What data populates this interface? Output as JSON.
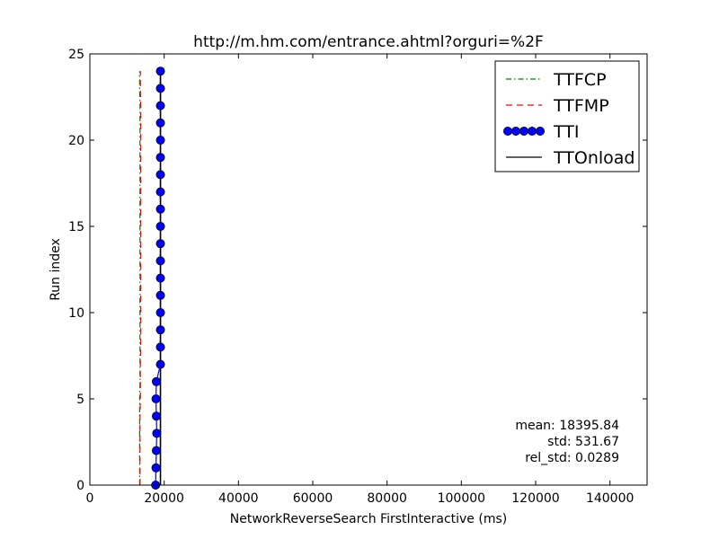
{
  "chart_data": {
    "type": "line",
    "title": "http://m.hm.com/entrance.ahtml?orguri=%2F",
    "xlabel": "NetworkReverseSearch FirstInteractive (ms)",
    "ylabel": "Run index",
    "xlim": [
      0,
      150000
    ],
    "ylim": [
      0,
      25
    ],
    "xticks": [
      0,
      20000,
      40000,
      60000,
      80000,
      100000,
      120000,
      140000
    ],
    "xtick_labels": [
      "0",
      "20000",
      "40000",
      "60000",
      "80000",
      "100000",
      "120000",
      "140000"
    ],
    "yticks": [
      0,
      5,
      10,
      15,
      20,
      25
    ],
    "ytick_labels": [
      "0",
      "5",
      "10",
      "15",
      "20",
      "25"
    ],
    "grid": false,
    "legend_position": "top-right",
    "y": [
      0,
      1,
      2,
      3,
      4,
      5,
      6,
      7,
      8,
      9,
      10,
      11,
      12,
      13,
      14,
      15,
      16,
      17,
      18,
      19,
      20,
      21,
      22,
      23,
      24
    ],
    "series": [
      {
        "name": "TTFCP",
        "color": "#008000",
        "style": "dashdot",
        "marker": "none",
        "x": [
          13400,
          13400,
          13400,
          13400,
          13400,
          13400,
          13500,
          13500,
          13500,
          13500,
          13500,
          13500,
          13500,
          13500,
          13500,
          13500,
          13500,
          13500,
          13500,
          13500,
          13500,
          13500,
          13500,
          13400,
          13400
        ]
      },
      {
        "name": "TTFMP",
        "color": "#ff0000",
        "style": "dashed",
        "marker": "none",
        "x": [
          13500,
          13500,
          13500,
          13500,
          13500,
          13600,
          13600,
          13600,
          13700,
          13700,
          13700,
          13700,
          13700,
          13700,
          13700,
          13700,
          13700,
          13700,
          13700,
          13700,
          13700,
          13700,
          13700,
          13600,
          13600
        ]
      },
      {
        "name": "TTI",
        "color": "#0000ff",
        "style": "solid",
        "marker": "circle",
        "x": [
          17700,
          17800,
          17900,
          18000,
          17900,
          17800,
          17900,
          19000,
          19000,
          19000,
          19000,
          19000,
          19000,
          19000,
          19000,
          19000,
          19000,
          19000,
          19000,
          19000,
          19000,
          19000,
          19000,
          19000,
          19000
        ]
      },
      {
        "name": "TTOnload",
        "color": "#000000",
        "style": "solid",
        "marker": "none",
        "x": [
          19000,
          19000,
          19000,
          19000,
          19000,
          19000,
          19000,
          19000,
          19000,
          19000,
          19000,
          19000,
          19000,
          19000,
          19000,
          19000,
          19000,
          19000,
          19000,
          19000,
          19000,
          19000,
          19000,
          19000,
          19000
        ]
      }
    ],
    "annotations": [
      "mean: 18395.84",
      "std: 531.67",
      "rel_std: 0.0289"
    ]
  }
}
